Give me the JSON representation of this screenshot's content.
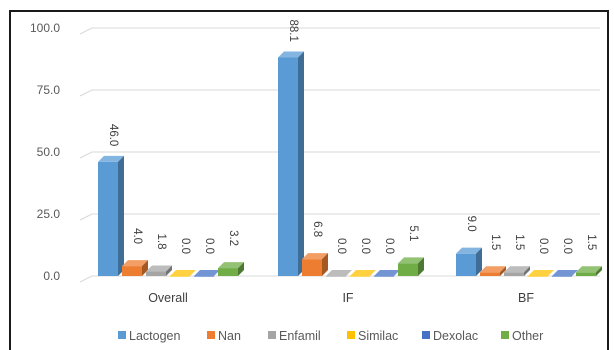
{
  "chart_data": {
    "type": "bar",
    "title": "",
    "xlabel": "",
    "ylabel": "",
    "ylim": [
      0,
      100
    ],
    "yticks": [
      "0.0",
      "25.0",
      "50.0",
      "75.0",
      "100.0"
    ],
    "categories": [
      "Overall",
      "IF",
      "BF"
    ],
    "series": [
      {
        "name": "Lactogen",
        "values": [
          46.0,
          88.1,
          9.0
        ],
        "labels": [
          "46.0",
          "88.1",
          "9.0"
        ],
        "color": "#5b9bd5"
      },
      {
        "name": "Nan",
        "values": [
          4.0,
          6.8,
          1.5
        ],
        "labels": [
          "4.0",
          "6.8",
          "1.5"
        ],
        "color": "#ed7d31"
      },
      {
        "name": "Enfamil",
        "values": [
          1.8,
          0.0,
          1.5
        ],
        "labels": [
          "1.8",
          "0.0",
          "1.5"
        ],
        "color": "#a5a5a5"
      },
      {
        "name": "Similac",
        "values": [
          0.0,
          0.0,
          0.0
        ],
        "labels": [
          "0.0",
          "0.0",
          "0.0"
        ],
        "color": "#ffc000"
      },
      {
        "name": "Dexolac",
        "values": [
          0.0,
          0.0,
          0.0
        ],
        "labels": [
          "0.0",
          "0.0",
          "0.0"
        ],
        "color": "#4472c4"
      },
      {
        "name": "Other",
        "values": [
          3.2,
          5.1,
          1.5
        ],
        "labels": [
          "3.2",
          "5.1",
          "1.5"
        ],
        "color": "#70ad47"
      }
    ],
    "grid": true,
    "legend": "bottom",
    "style": "3d-clustered-column"
  }
}
